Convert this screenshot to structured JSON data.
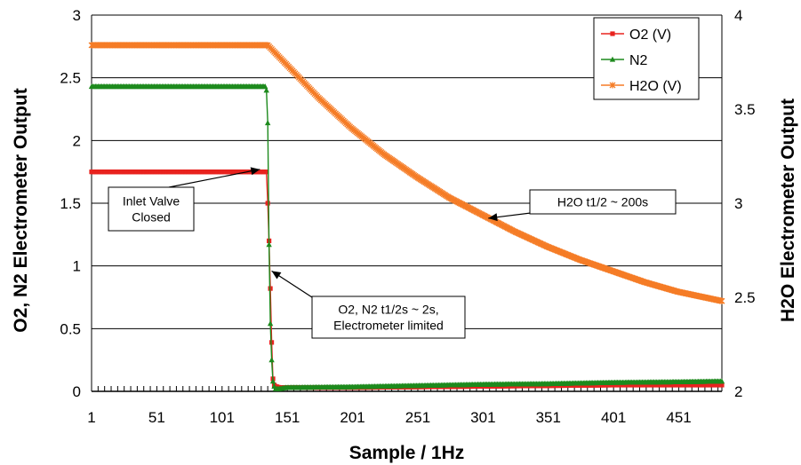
{
  "chart_data": {
    "type": "line",
    "xlabel": "Sample / 1Hz",
    "ylabel": "O2, N2 Electrometer Output",
    "ylabel_right": "H2O Electrometer Output",
    "xlim": [
      1,
      484
    ],
    "ylim": [
      0,
      3
    ],
    "ylim_right": [
      2,
      4
    ],
    "x_ticks": [
      1,
      51,
      101,
      151,
      201,
      251,
      301,
      351,
      401,
      451
    ],
    "y_ticks": [
      0,
      0.5,
      1,
      1.5,
      2,
      2.5,
      3
    ],
    "y_ticks_right": [
      2,
      2.5,
      3,
      3.5,
      4
    ],
    "y_tick_labels": [
      "0",
      "0.5",
      "1",
      "1.5",
      "2",
      "2.5",
      "3"
    ],
    "y_tick_labels_right": [
      "2",
      "2.5",
      "3",
      "3.5",
      "4"
    ],
    "grid": "horizontal",
    "legend_position": "top-right",
    "series": [
      {
        "name": "O2 (V)",
        "axis": "left",
        "color": "#e8231f",
        "marker": "square",
        "x": [
          1,
          135,
          136,
          137,
          138,
          139,
          140,
          141,
          142,
          145,
          150,
          200,
          250,
          300,
          350,
          400,
          450,
          484
        ],
        "y": [
          1.75,
          1.75,
          1.5,
          1.2,
          0.82,
          0.39,
          0.1,
          0.05,
          0.04,
          0.03,
          0.03,
          0.03,
          0.035,
          0.04,
          0.045,
          0.05,
          0.05,
          0.05
        ]
      },
      {
        "name": "N2",
        "axis": "left",
        "color": "#1d8a1d",
        "marker": "triangle",
        "x": [
          1,
          134,
          135,
          136,
          137,
          138,
          139,
          140,
          141,
          142,
          145,
          150,
          200,
          250,
          300,
          350,
          400,
          450,
          484
        ],
        "y": [
          2.43,
          2.43,
          2.4,
          2.14,
          1.17,
          0.54,
          0.25,
          0.08,
          0.04,
          0.02,
          0.02,
          0.03,
          0.035,
          0.045,
          0.055,
          0.06,
          0.07,
          0.075,
          0.08
        ]
      },
      {
        "name": "H2O (V)",
        "axis": "right",
        "color": "#f57c26",
        "marker": "star",
        "x": [
          1,
          136,
          150,
          175,
          200,
          225,
          250,
          275,
          300,
          325,
          350,
          375,
          400,
          425,
          450,
          484
        ],
        "y": [
          3.84,
          3.84,
          3.74,
          3.56,
          3.4,
          3.26,
          3.14,
          3.03,
          2.94,
          2.85,
          2.77,
          2.7,
          2.64,
          2.58,
          2.53,
          2.48
        ]
      }
    ],
    "annotations": [
      {
        "lines": [
          "Inlet Valve",
          "Closed"
        ],
        "target_x": 130,
        "target_y": 1.77,
        "axis": "left"
      },
      {
        "lines": [
          "H2O t1/2 ~ 200s"
        ],
        "target_x": 305,
        "target_y": 2.92,
        "axis": "right"
      },
      {
        "lines": [
          "O2, N2 t1/2s ~ 2s,",
          "Electrometer limited"
        ],
        "target_x": 139,
        "target_y": 0.96,
        "axis": "left"
      }
    ]
  }
}
